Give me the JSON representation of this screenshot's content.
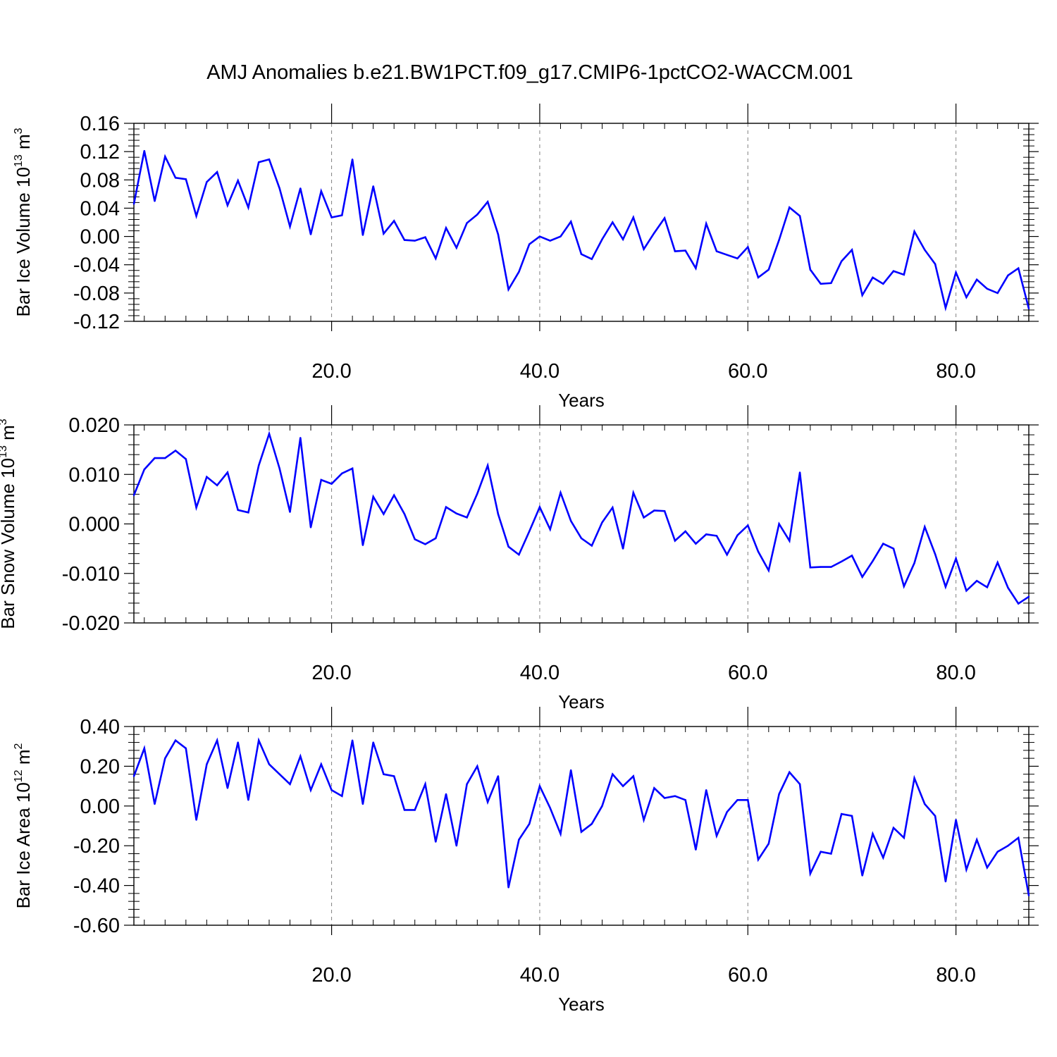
{
  "title": "AMJ Anomalies b.e21.BW1PCT.f09_g17.CMIP6-1pctCO2-WACCM.001",
  "colors": {
    "line": "#0000ff",
    "axis": "#000000",
    "grid": "#808080"
  },
  "chart_data": [
    {
      "type": "line",
      "name_panel": "ice-volume",
      "ylabel": {
        "main": "Bar Ice Volume 10",
        "exp": "13",
        "unit": " m",
        "unit_exp": "3"
      },
      "xlabel": "Years",
      "xlim": [
        1,
        87
      ],
      "ylim": [
        -0.12,
        0.16
      ],
      "yticks": [
        -0.12,
        -0.08,
        -0.04,
        0.0,
        0.04,
        0.08,
        0.12,
        0.16
      ],
      "ytick_labels": [
        "-0.12",
        "-0.08",
        "-0.04",
        "0.00",
        "0.04",
        "0.08",
        "0.12",
        "0.16"
      ],
      "xticks": [
        20,
        40,
        60,
        80
      ],
      "xtick_labels": [
        "20.0",
        "40.0",
        "60.0",
        "80.0"
      ],
      "grid": "vertical dashed at major x ticks",
      "values": [
        0.046,
        0.121,
        0.05,
        0.113,
        0.083,
        0.081,
        0.029,
        0.077,
        0.091,
        0.044,
        0.079,
        0.041,
        0.105,
        0.109,
        0.068,
        0.014,
        0.068,
        0.003,
        0.064,
        0.027,
        0.03,
        0.109,
        0.002,
        0.071,
        0.004,
        0.022,
        -0.005,
        -0.006,
        -0.001,
        -0.031,
        0.012,
        -0.016,
        0.019,
        0.031,
        0.049,
        0.003,
        -0.075,
        -0.05,
        -0.011,
        0.0,
        -0.006,
        0.0,
        0.021,
        -0.025,
        -0.032,
        -0.004,
        0.02,
        -0.004,
        0.027,
        -0.018,
        0.005,
        0.026,
        -0.021,
        -0.02,
        -0.045,
        0.018,
        -0.021,
        -0.026,
        -0.031,
        -0.015,
        -0.058,
        -0.047,
        -0.005,
        0.041,
        0.029,
        -0.047,
        -0.067,
        -0.066,
        -0.035,
        -0.019,
        -0.083,
        -0.058,
        -0.067,
        -0.049,
        -0.054,
        0.007,
        -0.019,
        -0.039,
        -0.101,
        -0.051,
        -0.086,
        -0.061,
        -0.074,
        -0.08,
        -0.055,
        -0.045,
        -0.102
      ]
    },
    {
      "type": "line",
      "name_panel": "snow-volume",
      "ylabel": {
        "main": "Bar Snow Volume 10",
        "exp": "13",
        "unit": " m",
        "unit_exp": "3"
      },
      "xlabel": "Years",
      "xlim": [
        1,
        87
      ],
      "ylim": [
        -0.02,
        0.02
      ],
      "yticks": [
        -0.02,
        -0.01,
        0.0,
        0.01,
        0.02
      ],
      "ytick_labels": [
        "-0.020",
        "-0.010",
        "0.000",
        "0.010",
        "0.020"
      ],
      "xticks": [
        20,
        40,
        60,
        80
      ],
      "xtick_labels": [
        "20.0",
        "40.0",
        "60.0",
        "80.0"
      ],
      "grid": "vertical dashed at major x ticks",
      "values": [
        0.0058,
        0.011,
        0.0133,
        0.0133,
        0.0148,
        0.0131,
        0.0033,
        0.0095,
        0.0078,
        0.0104,
        0.0028,
        0.0023,
        0.0118,
        0.0182,
        0.0112,
        0.0024,
        0.0174,
        -0.0007,
        0.0089,
        0.0081,
        0.0102,
        0.0112,
        -0.0043,
        0.0055,
        0.002,
        0.0058,
        0.002,
        -0.0031,
        -0.0041,
        -0.0029,
        0.0034,
        0.0021,
        0.0013,
        0.0061,
        0.0118,
        0.002,
        -0.0046,
        -0.0062,
        -0.0015,
        0.0034,
        -0.0011,
        0.0063,
        0.0006,
        -0.0029,
        -0.0044,
        0.0003,
        0.0033,
        -0.005,
        0.0063,
        0.0013,
        0.0027,
        0.0026,
        -0.0034,
        -0.0015,
        -0.004,
        -0.0021,
        -0.0024,
        -0.0062,
        -0.0023,
        -0.0003,
        -0.0056,
        -0.0094,
        0.0,
        -0.0034,
        0.0104,
        -0.0088,
        -0.0087,
        -0.0087,
        -0.0076,
        -0.0064,
        -0.0107,
        -0.0075,
        -0.004,
        -0.005,
        -0.0126,
        -0.0079,
        -0.0006,
        -0.0061,
        -0.0127,
        -0.007,
        -0.0135,
        -0.0115,
        -0.0128,
        -0.0078,
        -0.0129,
        -0.0161,
        -0.0147
      ]
    },
    {
      "type": "line",
      "name_panel": "ice-area",
      "ylabel": {
        "main": "Bar Ice Area 10",
        "exp": "12",
        "unit": " m",
        "unit_exp": "2"
      },
      "xlabel": "Years",
      "xlim": [
        1,
        87
      ],
      "ylim": [
        -0.6,
        0.4
      ],
      "yticks": [
        -0.6,
        -0.4,
        -0.2,
        0.0,
        0.2,
        0.4
      ],
      "ytick_labels": [
        "-0.60",
        "-0.40",
        "-0.20",
        "0.00",
        "0.20",
        "0.40"
      ],
      "xticks": [
        20,
        40,
        60,
        80
      ],
      "xtick_labels": [
        "20.0",
        "40.0",
        "60.0",
        "80.0"
      ],
      "grid": "vertical dashed at major x ticks",
      "values": [
        0.15,
        0.29,
        0.01,
        0.24,
        0.33,
        0.29,
        -0.07,
        0.21,
        0.33,
        0.09,
        0.32,
        0.03,
        0.33,
        0.21,
        0.16,
        0.11,
        0.25,
        0.08,
        0.21,
        0.08,
        0.05,
        0.33,
        0.01,
        0.32,
        0.16,
        0.15,
        -0.02,
        -0.02,
        0.11,
        -0.18,
        0.06,
        -0.2,
        0.11,
        0.2,
        0.02,
        0.15,
        -0.41,
        -0.17,
        -0.09,
        0.1,
        -0.01,
        -0.14,
        0.18,
        -0.13,
        -0.09,
        0.0,
        0.16,
        0.1,
        0.15,
        -0.07,
        0.09,
        0.04,
        0.05,
        0.03,
        -0.22,
        0.08,
        -0.15,
        -0.03,
        0.03,
        0.03,
        -0.27,
        -0.19,
        0.06,
        0.17,
        0.11,
        -0.34,
        -0.23,
        -0.24,
        -0.04,
        -0.05,
        -0.35,
        -0.14,
        -0.26,
        -0.11,
        -0.16,
        0.14,
        0.01,
        -0.05,
        -0.38,
        -0.07,
        -0.32,
        -0.17,
        -0.31,
        -0.23,
        -0.2,
        -0.16,
        -0.45
      ]
    }
  ]
}
